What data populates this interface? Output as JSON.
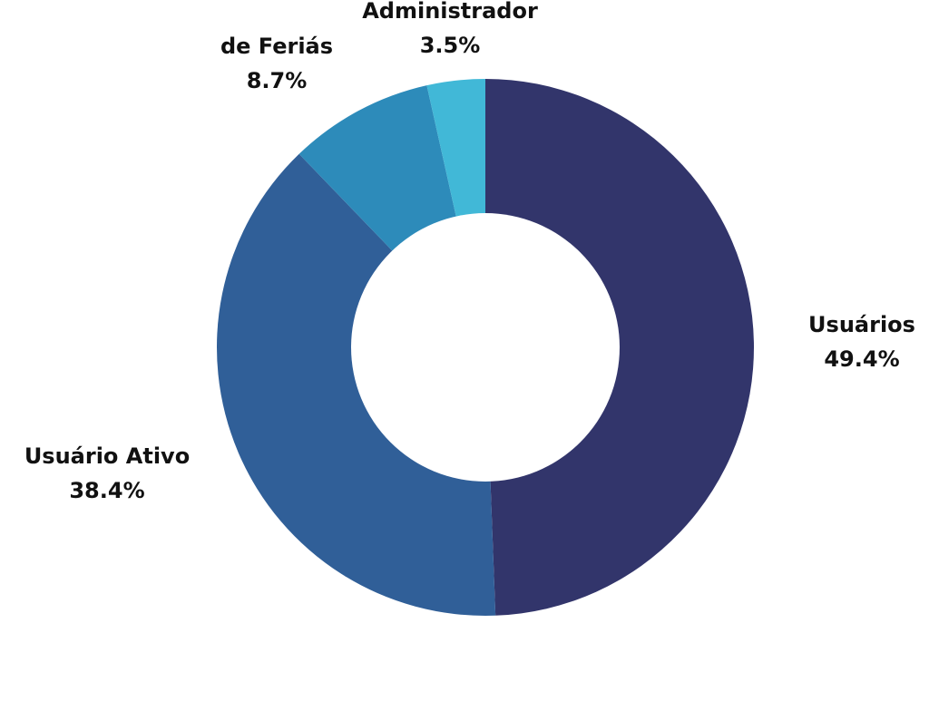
{
  "chart_data": {
    "type": "pie",
    "variant": "donut",
    "title": "",
    "legend": "none",
    "slices": [
      {
        "label": "Usuários",
        "value": 49.4,
        "display": "49.4%",
        "color": "#32356b"
      },
      {
        "label": "Usuário Ativo",
        "value": 38.4,
        "display": "38.4%",
        "color": "#305f98"
      },
      {
        "label": "de Feriás",
        "value": 8.7,
        "display": "8.7%",
        "color": "#2d8bba"
      },
      {
        "label": "Administrador",
        "value": 3.5,
        "display": "3.5%",
        "color": "#41b8d7"
      }
    ]
  }
}
